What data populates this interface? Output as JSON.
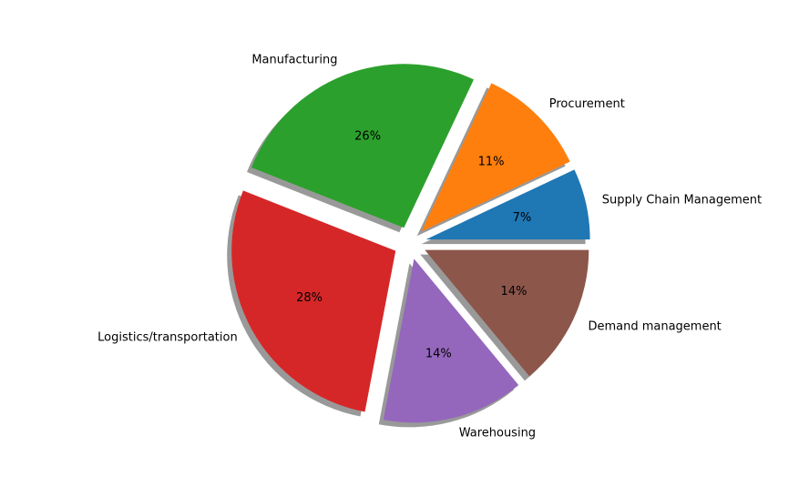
{
  "chart_data": {
    "type": "pie",
    "title": "",
    "start_angle_deg": 0,
    "direction": "counterclockwise",
    "exploded": true,
    "shadow": true,
    "slices": [
      {
        "label": "Supply Chain Management",
        "value": 7,
        "pct_label": "7%",
        "color": "#1f77b4"
      },
      {
        "label": "Procurement",
        "value": 11,
        "pct_label": "11%",
        "color": "#ff7f0e"
      },
      {
        "label": "Manufacturing",
        "value": 26,
        "pct_label": "26%",
        "color": "#2ca02c"
      },
      {
        "label": "Logistics/transportation",
        "value": 28,
        "pct_label": "28%",
        "color": "#d62728"
      },
      {
        "label": "Warehousing",
        "value": 14,
        "pct_label": "14%",
        "color": "#9467bd"
      },
      {
        "label": "Demand management",
        "value": 14,
        "pct_label": "14%",
        "color": "#8c564b"
      }
    ]
  }
}
